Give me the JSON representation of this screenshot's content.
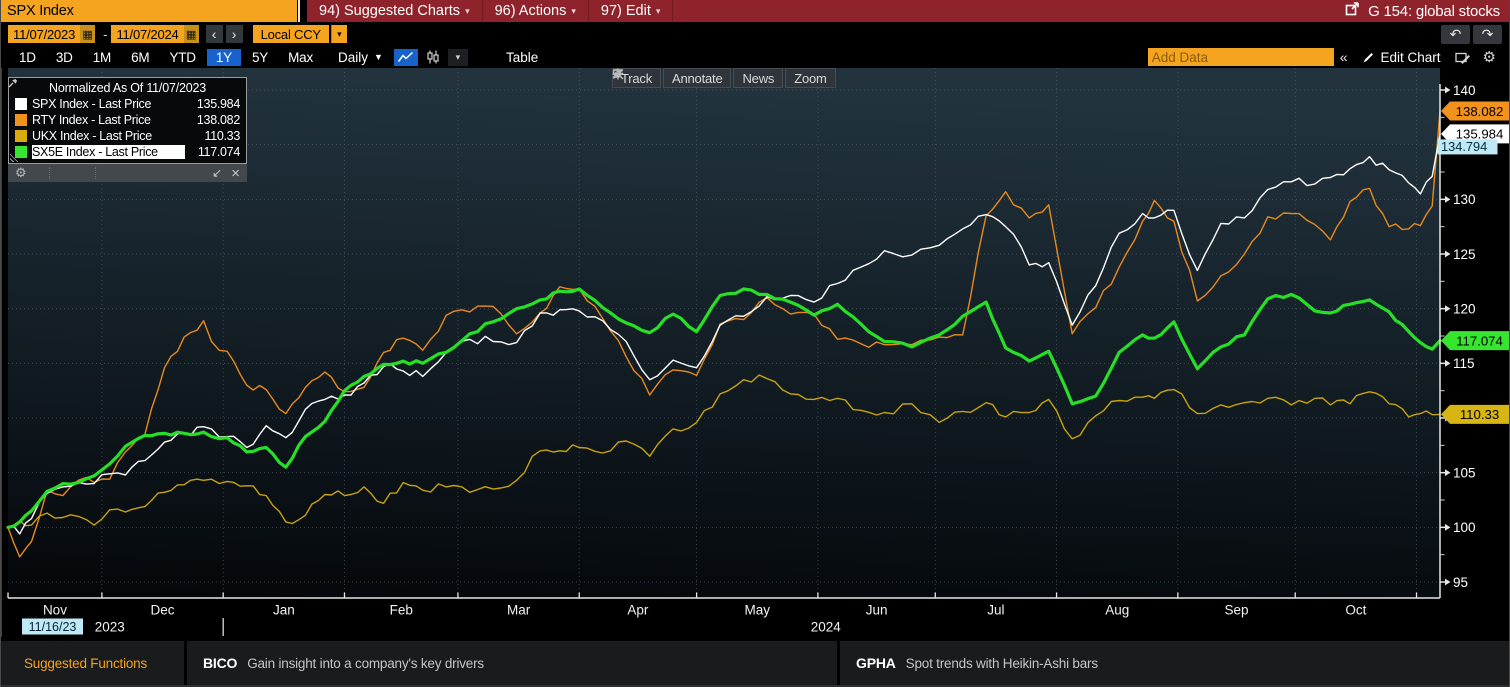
{
  "window": {
    "security_field": "SPX Index",
    "menu": [
      {
        "label": "94) Suggested Charts"
      },
      {
        "label": "96) Actions"
      },
      {
        "label": "97) Edit"
      }
    ],
    "shortcut": "G 154: global stocks"
  },
  "toolbar": {
    "date_from": "11/07/2023",
    "date_to": "11/07/2024",
    "dash": "-",
    "currency": "Local CCY",
    "periods": [
      "1D",
      "3D",
      "1M",
      "6M",
      "YTD",
      "1Y",
      "5Y",
      "Max"
    ],
    "selected_period": "1Y",
    "frequency": "Daily",
    "table_label": "Table",
    "add_data_placeholder": "Add Data",
    "collapse_label": "«",
    "edit_chart_label": "Edit Chart"
  },
  "icons": {
    "dropdown": "▾",
    "filled_dropdown": "▼",
    "calendar": "▦",
    "prev": "‹",
    "next": "›",
    "undo": "↶",
    "redo": "↷",
    "gear": "⚙",
    "restore": "↙",
    "close": "×"
  },
  "chart_toolbar": {
    "track": "Track",
    "annotate": "Annotate",
    "news": "News",
    "zoom": "Zoom"
  },
  "legend": {
    "title": "Normalized As Of 11/07/2023",
    "items": [
      {
        "label": "SPX Index - Last Price",
        "value": "135.984",
        "color": "#ffffff",
        "highlight": false
      },
      {
        "label": "RTY Index - Last Price",
        "value": "138.082",
        "color": "#f2911b",
        "highlight": false
      },
      {
        "label": "UKX Index - Last Price",
        "value": "110.33",
        "color": "#d8ac0e",
        "highlight": false
      },
      {
        "label": "SX5E Index - Last Price",
        "value": "117.074",
        "color": "#35e52e",
        "highlight": true
      }
    ]
  },
  "chart_data": {
    "type": "line",
    "title": "Normalized As Of 11/07/2023",
    "x_unit": "days since 11/07/2023",
    "x": [
      0,
      3,
      6,
      10,
      14,
      18,
      22,
      26,
      30,
      35,
      40,
      45,
      50,
      52,
      56,
      61,
      66,
      71,
      76,
      81,
      86,
      91,
      96,
      101,
      106,
      112,
      118,
      124,
      130,
      136,
      141,
      146,
      152,
      158,
      164,
      170,
      176,
      182,
      188,
      194,
      200,
      206,
      212,
      218,
      224,
      231,
      238,
      244,
      250,
      255,
      257,
      261,
      266,
      272,
      278,
      284,
      290,
      293,
      298,
      304,
      310,
      316,
      322,
      328,
      334,
      338,
      343,
      348,
      353,
      358,
      361,
      364,
      366
    ],
    "series": [
      {
        "name": "SPX Index - Last Price",
        "color": "#ffffff",
        "width": 1.4,
        "values": [
          100,
          99.4,
          100.8,
          103.1,
          103.7,
          104.1,
          104.0,
          104.9,
          104.8,
          106.1,
          107.8,
          108.6,
          109.2,
          109.0,
          108.3,
          107.3,
          109.3,
          108.2,
          110.8,
          111.7,
          112.1,
          113.2,
          114.7,
          114.3,
          113.8,
          116.0,
          117.2,
          117.0,
          116.9,
          119.6,
          119.9,
          119.8,
          118.9,
          117.0,
          113.5,
          115.3,
          114.6,
          118.5,
          119.3,
          121.1,
          121.2,
          120.6,
          122.3,
          123.8,
          125.3,
          124.9,
          125.8,
          127.3,
          128.6,
          127.5,
          126.8,
          124.0,
          124.2,
          118.5,
          122.1,
          126.9,
          128.7,
          128.3,
          129.0,
          123.5,
          127.8,
          128.3,
          130.9,
          131.6,
          131.4,
          132.0,
          132.8,
          133.9,
          132.7,
          131.5,
          130.5,
          132.1,
          135.984
        ]
      },
      {
        "name": "RTY Index - Last Price",
        "color": "#e9891d",
        "width": 1.4,
        "values": [
          100,
          97.3,
          98.7,
          103.4,
          102.9,
          104.3,
          104.1,
          104.4,
          106.9,
          108.5,
          114.6,
          117.4,
          118.9,
          117.0,
          116.1,
          113.0,
          112.6,
          110.4,
          112.8,
          114.2,
          112.4,
          112.8,
          116.0,
          117.3,
          116.2,
          119.4,
          119.7,
          120.2,
          117.7,
          119.6,
          122.0,
          121.8,
          119.1,
          115.6,
          112.1,
          114.4,
          113.9,
          118.6,
          119.0,
          121.0,
          119.5,
          119.5,
          117.2,
          116.8,
          116.7,
          116.7,
          117.4,
          117.6,
          128.5,
          130.7,
          129.5,
          128.3,
          129.5,
          117.7,
          120.1,
          123.8,
          128.0,
          129.9,
          128.0,
          120.7,
          123.0,
          125.0,
          128.4,
          128.7,
          127.7,
          126.3,
          129.8,
          131.0,
          127.5,
          127.3,
          127.6,
          129.4,
          138.082
        ]
      },
      {
        "name": "UKX Index - Last Price",
        "color": "#c7a30d",
        "width": 1.4,
        "values": [
          100,
          100.6,
          100.2,
          101.3,
          100.9,
          101.0,
          100.2,
          101.6,
          101.4,
          101.9,
          103.2,
          103.9,
          104.3,
          104.4,
          104.2,
          103.8,
          102.9,
          100.5,
          101.1,
          103.0,
          102.9,
          103.7,
          102.2,
          104.1,
          103.4,
          103.7,
          103.2,
          103.5,
          104.3,
          107.0,
          107.0,
          107.3,
          106.8,
          107.9,
          106.5,
          109.0,
          109.6,
          112.2,
          113.5,
          113.6,
          112.2,
          111.7,
          111.8,
          110.7,
          110.5,
          111.3,
          109.6,
          110.6,
          111.4,
          110.1,
          110.6,
          110.5,
          111.7,
          108.1,
          110.2,
          111.6,
          111.9,
          111.8,
          112.6,
          110.4,
          111.2,
          111.4,
          111.8,
          111.2,
          111.8,
          111.2,
          111.3,
          112.4,
          111.3,
          110.1,
          110.4,
          110.3,
          110.33
        ]
      },
      {
        "name": "SX5E Index - Last Price",
        "color": "#28df28",
        "width": 3.2,
        "values": [
          100,
          100.5,
          101.5,
          103.3,
          104.0,
          104.1,
          104.7,
          105.8,
          107.4,
          108.4,
          108.6,
          108.6,
          108.7,
          108.3,
          108.2,
          106.9,
          107.3,
          105.5,
          108.3,
          109.7,
          112.5,
          113.8,
          114.9,
          115.2,
          115.0,
          116.0,
          117.7,
          118.8,
          120.0,
          120.8,
          121.6,
          121.8,
          120.1,
          118.7,
          117.8,
          119.5,
          117.9,
          121.2,
          121.8,
          121.3,
          120.6,
          119.4,
          120.4,
          118.6,
          117.0,
          116.5,
          117.6,
          119.3,
          120.6,
          116.4,
          116.0,
          115.2,
          116.1,
          111.3,
          112.0,
          116.0,
          117.6,
          117.3,
          118.8,
          114.5,
          116.5,
          117.6,
          120.9,
          121.3,
          119.8,
          119.6,
          120.4,
          120.8,
          119.7,
          117.9,
          116.9,
          116.3,
          117.074
        ]
      }
    ],
    "ylim": [
      93.5,
      140.5
    ],
    "grid": true,
    "legend_position": "top-left",
    "y_axis": {
      "major_ticks": [
        95,
        100,
        105,
        110,
        115,
        120,
        125,
        130,
        135,
        140
      ],
      "minor_ticks": [
        97.5,
        102.5,
        107.5,
        112.5,
        117.5,
        122.5,
        127.5,
        132.5,
        137.5
      ]
    },
    "x_axis": {
      "month_boundaries": [
        0,
        24,
        55,
        86,
        115,
        146,
        176,
        207,
        237,
        268,
        299,
        329,
        360
      ],
      "months": [
        {
          "label": "Nov",
          "center_day": 12
        },
        {
          "label": "Dec",
          "center_day": 39.5
        },
        {
          "label": "Jan",
          "center_day": 70.5
        },
        {
          "label": "Feb",
          "center_day": 100.5
        },
        {
          "label": "Mar",
          "center_day": 130.5
        },
        {
          "label": "Apr",
          "center_day": 161
        },
        {
          "label": "May",
          "center_day": 191.5
        },
        {
          "label": "Jun",
          "center_day": 222
        },
        {
          "label": "Jul",
          "center_day": 252.5
        },
        {
          "label": "Aug",
          "center_day": 283.5
        },
        {
          "label": "Sep",
          "center_day": 314
        },
        {
          "label": "Oct",
          "center_day": 344.5
        }
      ],
      "year_labels": [
        {
          "label": "2023",
          "day": 26
        },
        {
          "label": "2024",
          "day": 209
        }
      ],
      "year_divider_day": 55,
      "date_badge": {
        "label": "11/16/23",
        "bg": "#bfe9f6",
        "fg": "#07222e"
      }
    },
    "axis_badges": [
      {
        "label": "138.082",
        "value": 138.082,
        "bg": "#f2911b",
        "fg": "#000000",
        "style": "tag"
      },
      {
        "label": "135.984",
        "value": 135.984,
        "bg": "#ffffff",
        "fg": "#000000",
        "style": "tag"
      },
      {
        "label": "134.794",
        "value": 134.794,
        "bg": "#bfe9f6",
        "fg": "#062a38",
        "style": "flat"
      },
      {
        "label": "117.074",
        "value": 117.074,
        "bg": "#35e52e",
        "fg": "#000000",
        "style": "tag"
      },
      {
        "label": "110.33",
        "value": 110.33,
        "bg": "#d7b513",
        "fg": "#000000",
        "style": "tag"
      }
    ]
  },
  "footer": {
    "suggested_functions_label": "Suggested Functions",
    "items": [
      {
        "code": "BICO",
        "desc": "Gain insight into a company's key drivers"
      },
      {
        "code": "GPHA",
        "desc": "Spot trends with Heikin-Ashi bars"
      }
    ]
  }
}
